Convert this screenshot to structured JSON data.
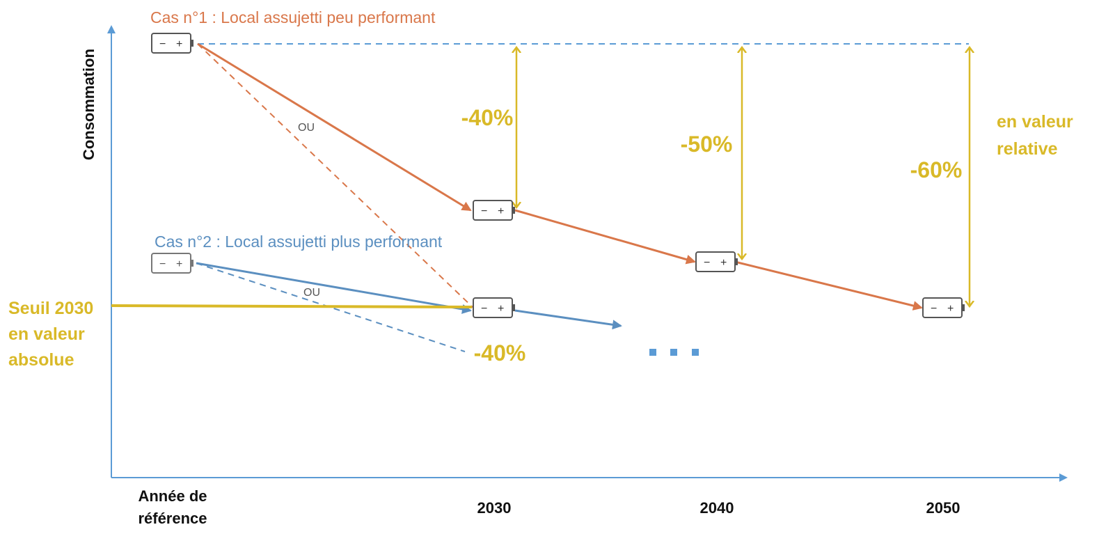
{
  "colors": {
    "axis": "#5b9bd5",
    "case1": "#d9774a",
    "case2": "#5b8fc0",
    "highlight": "#d9b928",
    "battery": "#555555",
    "text": "#111111"
  },
  "axes": {
    "y_label": "Consommation",
    "x_ticks": [
      "Année de",
      "référence",
      "2030",
      "2040",
      "2050"
    ]
  },
  "case1": {
    "title": "Cas n°1 : Local assujetti peu performant",
    "or_label": "OU"
  },
  "case2": {
    "title": "Cas n°2 : Local assujetti plus performant",
    "or_label": "OU"
  },
  "threshold": {
    "line1": "Seuil 2030",
    "line2": "en valeur",
    "line3": "absolue"
  },
  "relative": {
    "line1": "en valeur",
    "line2": "relative"
  },
  "percentages": {
    "p2030": "-40%",
    "p2040": "-50%",
    "p2050": "-60%",
    "case2_2030": "-40%"
  },
  "battery_symbols": {
    "minus": "−",
    "plus": "+"
  },
  "ellipsis": "..."
}
